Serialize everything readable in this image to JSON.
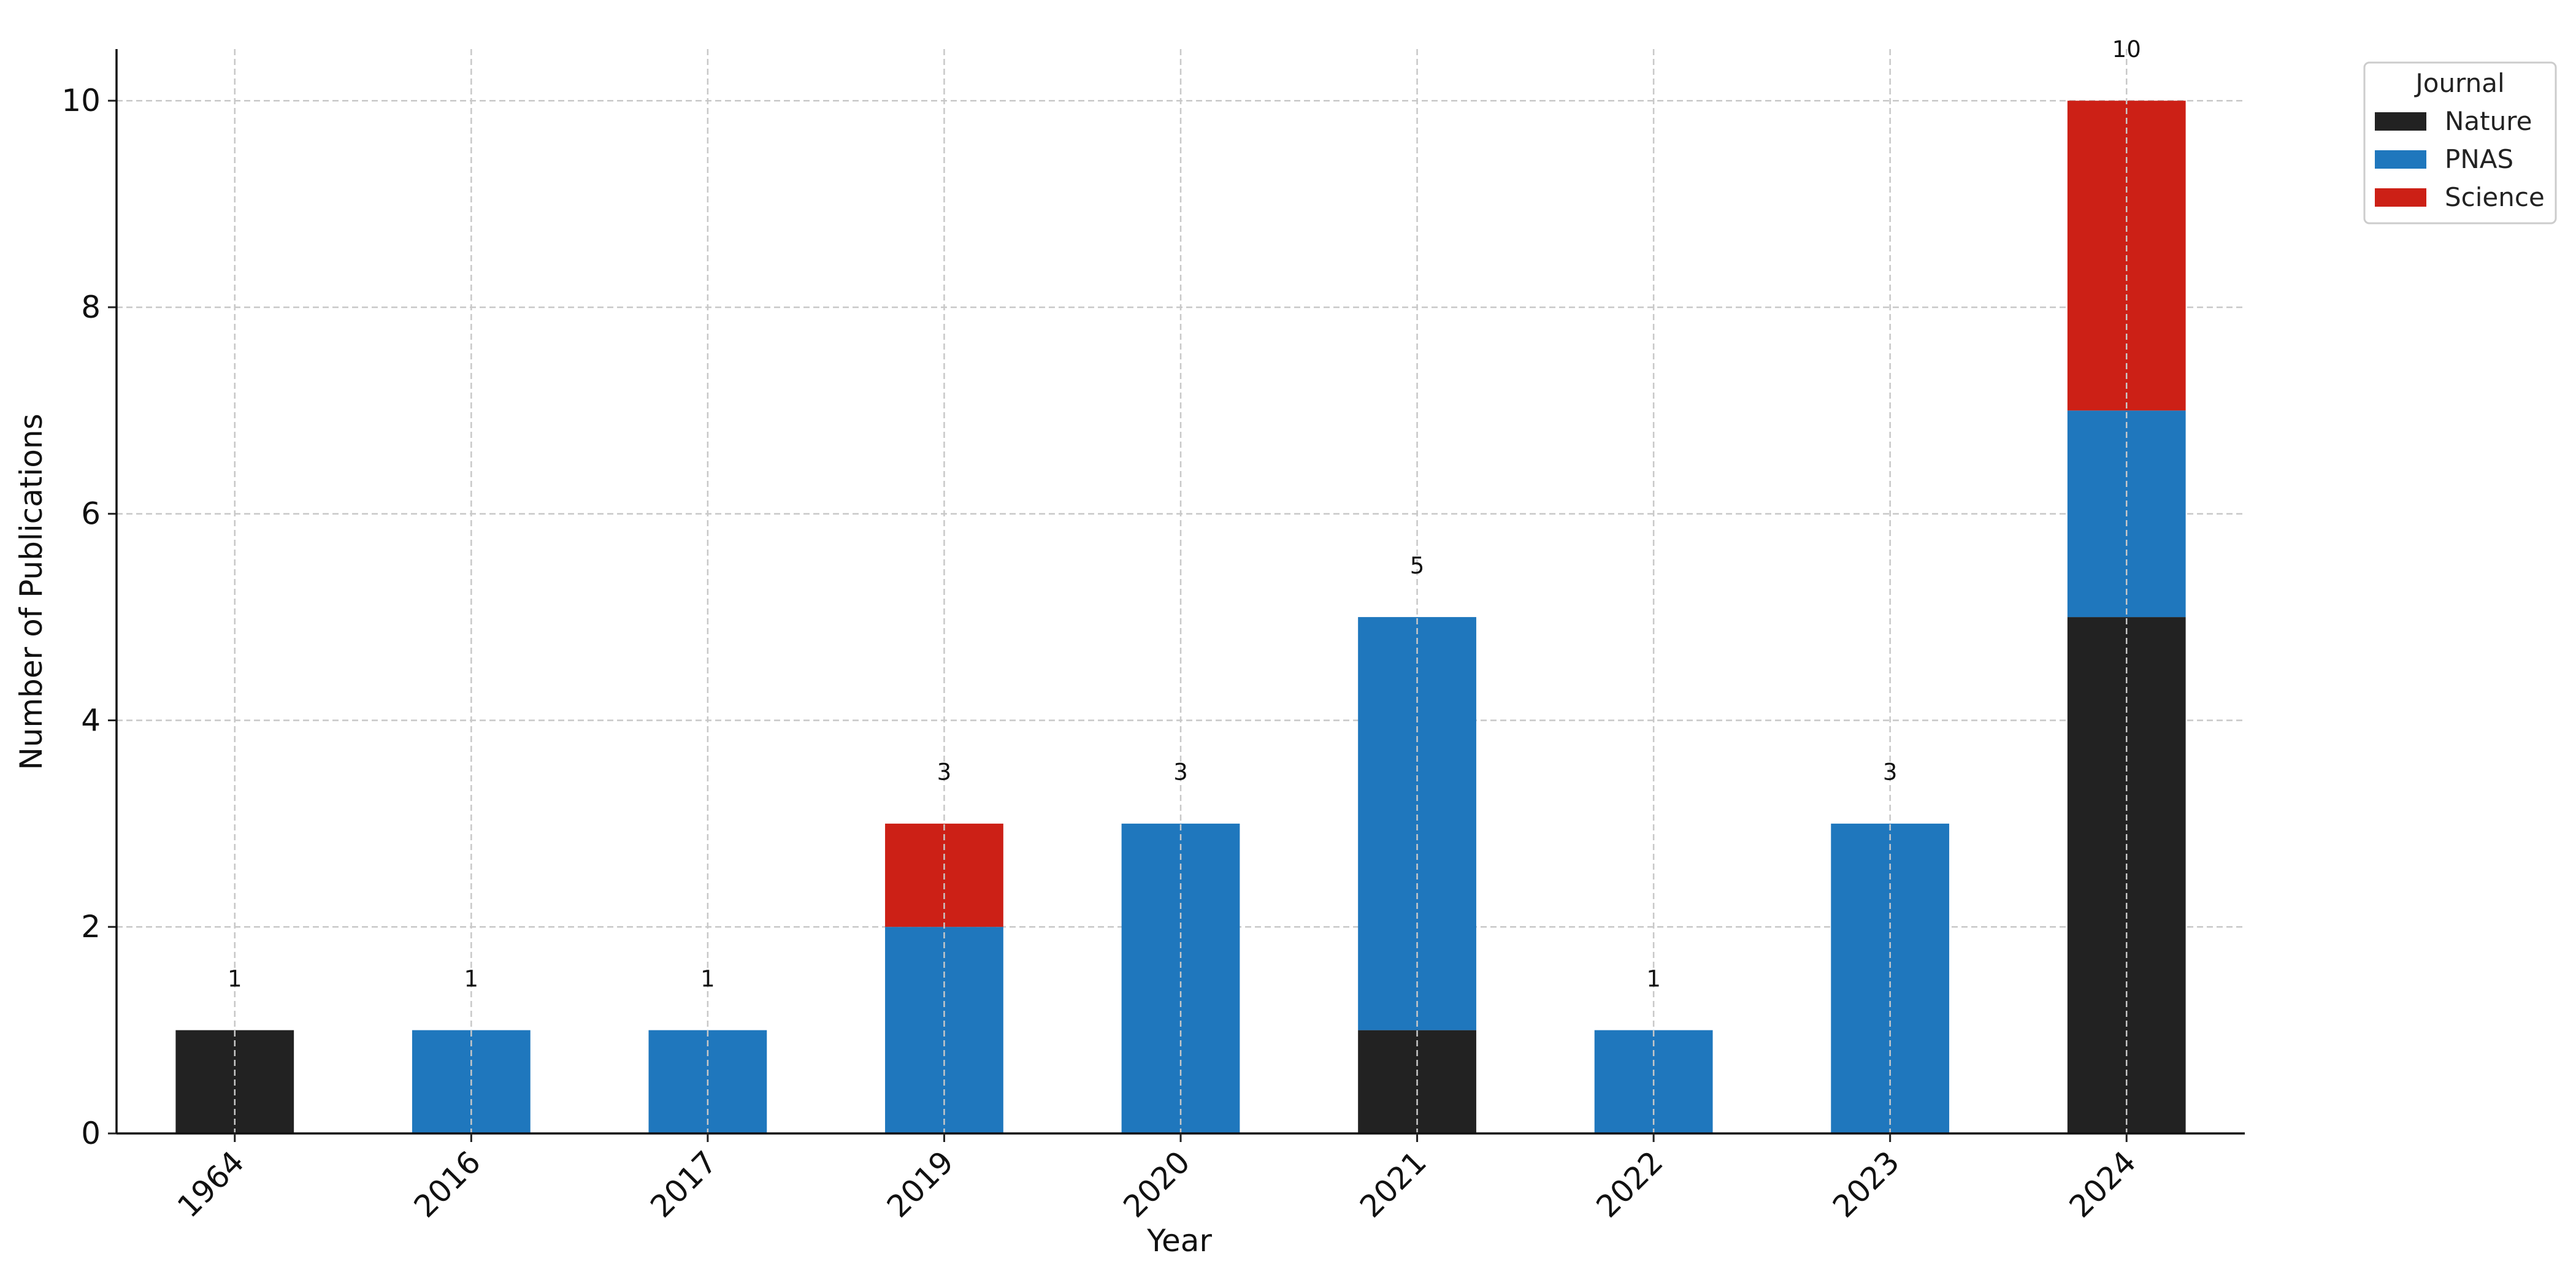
{
  "chart_data": {
    "type": "bar",
    "stacked": true,
    "title": "",
    "xlabel": "Year",
    "ylabel": "Number of Publications",
    "categories": [
      "1964",
      "2016",
      "2017",
      "2019",
      "2020",
      "2021",
      "2022",
      "2023",
      "2024"
    ],
    "series": [
      {
        "name": "Nature",
        "color": "#222222",
        "values": [
          1,
          0,
          0,
          0,
          0,
          1,
          0,
          0,
          5
        ]
      },
      {
        "name": "PNAS",
        "color": "#1f77bd",
        "values": [
          0,
          1,
          1,
          2,
          3,
          4,
          1,
          3,
          2
        ]
      },
      {
        "name": "Science",
        "color": "#cc2016",
        "values": [
          0,
          0,
          0,
          1,
          0,
          0,
          0,
          0,
          3
        ]
      }
    ],
    "totals": [
      1,
      1,
      1,
      3,
      3,
      5,
      1,
      3,
      10
    ],
    "ylim": [
      0,
      10.5
    ],
    "yticks": [
      0,
      2,
      4,
      6,
      8,
      10
    ],
    "grid": true,
    "legend": {
      "title": "Journal",
      "placement": "outside-top-right"
    }
  }
}
